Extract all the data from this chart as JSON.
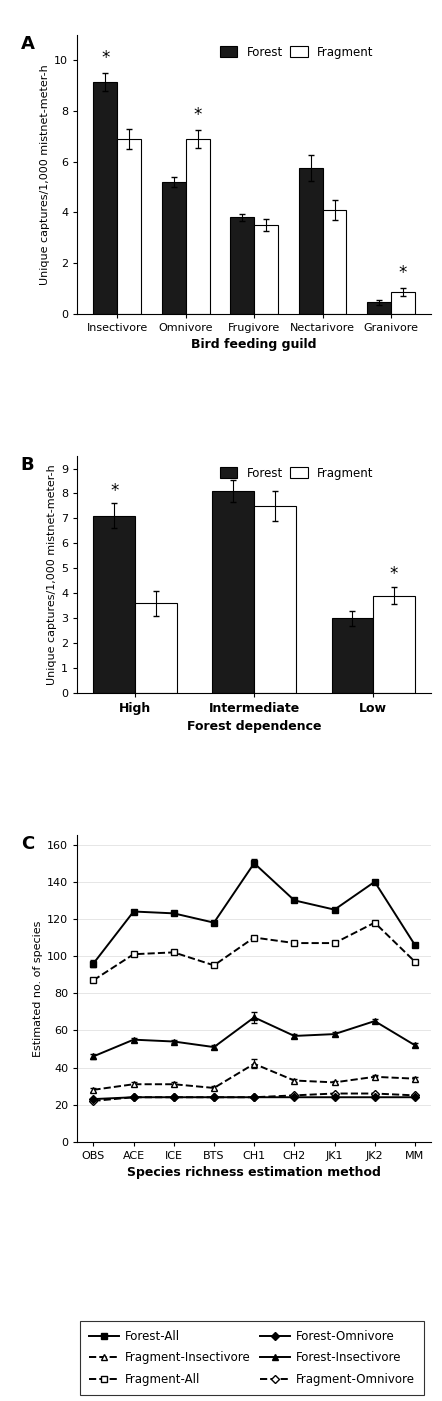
{
  "panel_A": {
    "categories": [
      "Insectivore",
      "Omnivore",
      "Frugivore",
      "Nectarivore",
      "Granivore"
    ],
    "forest_vals": [
      9.15,
      5.2,
      3.8,
      5.75,
      0.45
    ],
    "fragment_vals": [
      6.9,
      6.9,
      3.5,
      4.1,
      0.85
    ],
    "forest_err": [
      0.35,
      0.2,
      0.15,
      0.5,
      0.1
    ],
    "fragment_err": [
      0.4,
      0.35,
      0.25,
      0.4,
      0.15
    ],
    "sig": [
      true,
      true,
      false,
      false,
      true
    ],
    "sig_positions": [
      "forest",
      "fragment",
      null,
      null,
      "fragment"
    ],
    "ylabel": "Unique captures/1,000 mistnet-meter-h",
    "xlabel": "Bird feeding guild",
    "ylim": [
      0,
      11.0
    ],
    "yticks": [
      0,
      2,
      4,
      6,
      8,
      10
    ]
  },
  "panel_B": {
    "categories": [
      "High",
      "Intermediate",
      "Low"
    ],
    "forest_vals": [
      7.1,
      8.1,
      3.0
    ],
    "fragment_vals": [
      3.6,
      7.5,
      3.9
    ],
    "forest_err": [
      0.5,
      0.45,
      0.3
    ],
    "fragment_err": [
      0.5,
      0.6,
      0.35
    ],
    "sig": [
      true,
      false,
      true
    ],
    "sig_positions": [
      "forest",
      null,
      "fragment"
    ],
    "ylabel": "Unique captures/1,000 mistnet-meter-h",
    "xlabel": "Forest dependence",
    "ylim": [
      0,
      9.5
    ],
    "yticks": [
      0,
      1,
      2,
      3,
      4,
      5,
      6,
      7,
      8,
      9
    ]
  },
  "panel_C": {
    "x_labels": [
      "OBS",
      "ACE",
      "ICE",
      "BTS",
      "CH1",
      "CH2",
      "JK1",
      "JK2",
      "MM"
    ],
    "forest_all": [
      96,
      124,
      123,
      118,
      150,
      130,
      125,
      140,
      106
    ],
    "fragment_all": [
      87,
      101,
      102,
      95,
      110,
      107,
      107,
      118,
      97
    ],
    "forest_insect": [
      46,
      55,
      54,
      51,
      67,
      57,
      58,
      65,
      52
    ],
    "fragment_insect": [
      28,
      31,
      31,
      29,
      42,
      33,
      32,
      35,
      34
    ],
    "forest_omni": [
      23,
      24,
      24,
      24,
      24,
      24,
      24,
      24,
      24
    ],
    "fragment_omni": [
      22,
      24,
      24,
      24,
      24,
      25,
      26,
      26,
      25
    ],
    "forest_all_err": [
      2,
      1,
      1,
      1,
      2,
      1,
      1,
      1,
      1
    ],
    "forest_insect_err": [
      1.5,
      1,
      1,
      1,
      3,
      1,
      1,
      1,
      1
    ],
    "fragment_insect_err": [
      1,
      1,
      1,
      1,
      2.5,
      1,
      1,
      1,
      1
    ],
    "ylabel": "Estimated no. of species",
    "xlabel": "Species richness estimation method",
    "ylim": [
      0,
      165
    ],
    "yticks": [
      0,
      20,
      40,
      60,
      80,
      100,
      120,
      140,
      160
    ]
  },
  "bar_width": 0.35,
  "forest_color": "#1a1a1a",
  "fragment_color": "#ffffff",
  "edge_color": "#000000"
}
